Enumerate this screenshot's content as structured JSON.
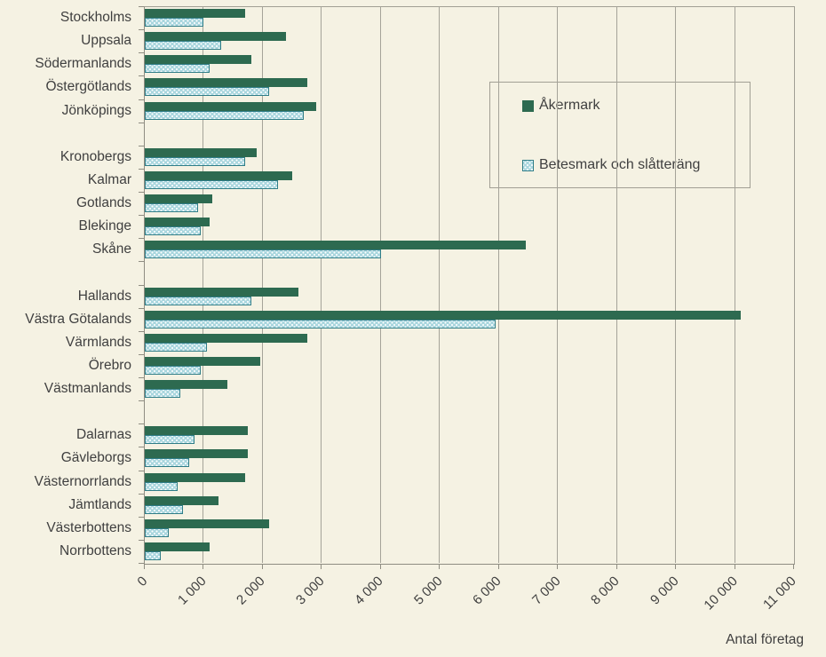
{
  "colors": {
    "background": "#f5f2e3",
    "akermark": "#2d6a50",
    "betesmark_fill": "#a9d6de",
    "betesmark_border": "#2f7d87",
    "gridline": "#a5a399",
    "axis": "#8f8d82",
    "text": "#3f3f3f"
  },
  "legend": {
    "items": [
      {
        "label": "Åkermark",
        "swatch": "solid-green"
      },
      {
        "label": "Betesmark och slåtteräng",
        "swatch": "dotted-blue"
      }
    ]
  },
  "x_axis": {
    "title": "Antal företag",
    "tick_values": [
      0,
      1000,
      2000,
      3000,
      4000,
      5000,
      6000,
      7000,
      8000,
      9000,
      10000,
      11000
    ],
    "tick_labels": [
      "0",
      "1 000",
      "2 000",
      "3 000",
      "4 000",
      "5 000",
      "6 000",
      "7 000",
      "8 000",
      "9 000",
      "10 000",
      "11 000"
    ]
  },
  "chart_data": {
    "type": "bar",
    "orientation": "horizontal",
    "xlabel": "Antal företag",
    "xlim": [
      0,
      11000
    ],
    "grid": "vertical",
    "legend_position": "inside-top-right",
    "categories": [
      "Stockholms",
      "Uppsala",
      "Södermanlands",
      "Östergötlands",
      "Jönköpings",
      "Kronobergs",
      "Kalmar",
      "Gotlands",
      "Blekinge",
      "Skåne",
      "Hallands",
      "Västra Götalands",
      "Värmlands",
      "Örebro",
      "Västmanlands",
      "Dalarnas",
      "Gävleborgs",
      "Västernorrlands",
      "Jämtlands",
      "Västerbottens",
      "Norrbottens"
    ],
    "group_gap_after_indices": [
      4,
      9,
      14
    ],
    "series": [
      {
        "name": "Åkermark",
        "values": [
          1700,
          2400,
          1800,
          2750,
          2900,
          1900,
          2500,
          1150,
          1100,
          6450,
          2600,
          10100,
          2750,
          1950,
          1400,
          1750,
          1750,
          1700,
          1250,
          2100,
          1100
        ]
      },
      {
        "name": "Betesmark och slåtteräng",
        "values": [
          1000,
          1300,
          1100,
          2100,
          2700,
          1700,
          2250,
          900,
          950,
          4000,
          1800,
          5950,
          1050,
          950,
          600,
          850,
          750,
          550,
          650,
          400,
          270
        ]
      }
    ]
  }
}
